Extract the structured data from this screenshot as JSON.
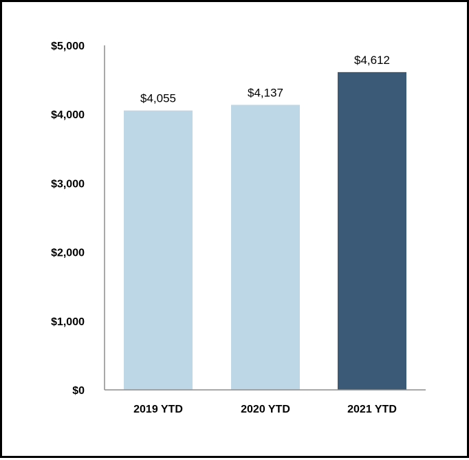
{
  "chart_data": {
    "type": "bar",
    "title": "",
    "xlabel": "",
    "ylabel": "",
    "categories": [
      "2019 YTD",
      "2020 YTD",
      "2021 YTD"
    ],
    "values": [
      4055,
      4137,
      4612
    ],
    "data_labels": [
      "$4,055",
      "$4,137",
      "$4,612"
    ],
    "bar_colors": [
      "#bdd7e7",
      "#bdd7e7",
      "#3b5a78"
    ],
    "ylim": [
      0,
      5000
    ],
    "yticks": [
      0,
      1000,
      2000,
      3000,
      4000,
      5000
    ],
    "ytick_labels": [
      "$0",
      "$1,000",
      "$2,000",
      "$3,000",
      "$4,000",
      "$5,000"
    ],
    "grid": false,
    "legend": "none"
  }
}
